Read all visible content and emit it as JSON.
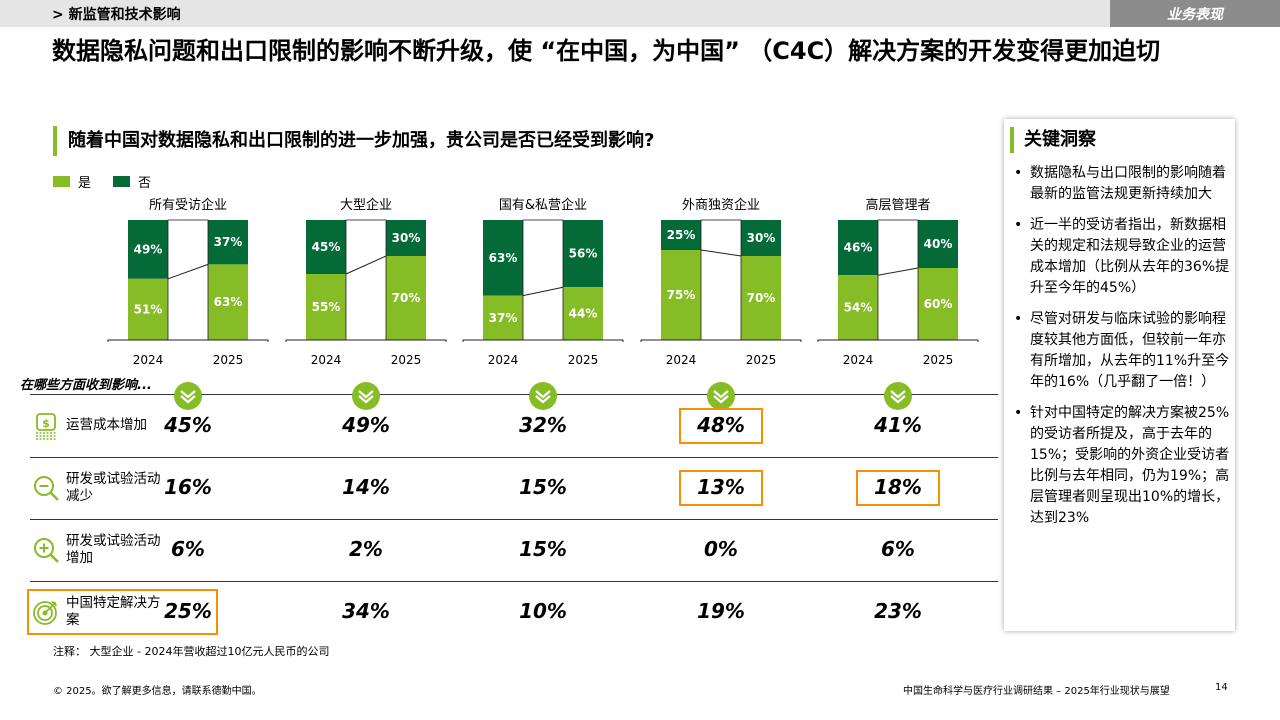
{
  "header": {
    "section": "> 新监管和技术影响",
    "tag": "业务表现"
  },
  "title": "数据隐私问题和出口限制的影响不断升级，使 “在中国，为中国” （C4C）解决方案的开发变得更加迫切",
  "question": "随着中国对数据隐私和出口限制的进一步加强，贵公司是否已经受到影响?",
  "colors": {
    "yes": "#86bc25",
    "no": "#046a38",
    "highlight": "#f39200"
  },
  "chart_data": {
    "type": "bar",
    "stacked": true,
    "unit": "%",
    "legend": [
      {
        "name": "是",
        "color": "#86bc25"
      },
      {
        "name": "否",
        "color": "#046a38"
      }
    ],
    "groups": [
      {
        "title": "所有受访企业",
        "categories": [
          "2024",
          "2025"
        ],
        "yes": [
          51,
          63
        ],
        "no": [
          49,
          37
        ]
      },
      {
        "title": "大型企业",
        "categories": [
          "2024",
          "2025"
        ],
        "yes": [
          55,
          70
        ],
        "no": [
          45,
          30
        ]
      },
      {
        "title": "国有&私营企业",
        "categories": [
          "2024",
          "2025"
        ],
        "yes": [
          37,
          44
        ],
        "no": [
          63,
          56
        ]
      },
      {
        "title": "外商独资企业",
        "categories": [
          "2024",
          "2025"
        ],
        "yes": [
          75,
          70
        ],
        "no": [
          25,
          30
        ]
      },
      {
        "title": "高层管理者",
        "categories": [
          "2024",
          "2025"
        ],
        "yes": [
          54,
          60
        ],
        "no": [
          46,
          40
        ]
      }
    ],
    "ylim": [
      0,
      100
    ]
  },
  "impact": {
    "title": "在哪些方面收到影响...",
    "rows": [
      {
        "icon": "money-stack-icon",
        "label": "运营成本增加",
        "values": [
          "45%",
          "49%",
          "32%",
          "48%",
          "41%"
        ],
        "highlight": [
          false,
          false,
          false,
          true,
          false
        ]
      },
      {
        "icon": "magnifier-minus-icon",
        "label": "研发或试验活动减少",
        "values": [
          "16%",
          "14%",
          "15%",
          "13%",
          "18%"
        ],
        "highlight": [
          false,
          false,
          false,
          true,
          true
        ]
      },
      {
        "icon": "magnifier-plus-icon",
        "label": "研发或试验活动增加",
        "values": [
          "6%",
          "2%",
          "15%",
          "0%",
          "6%"
        ],
        "highlight": [
          false,
          false,
          false,
          false,
          false
        ]
      },
      {
        "icon": "target-icon",
        "label": "中国特定解决方案",
        "values": [
          "25%",
          "34%",
          "10%",
          "19%",
          "23%"
        ],
        "highlight": [
          true,
          false,
          false,
          false,
          false
        ],
        "label_highlight": true
      }
    ]
  },
  "insights": {
    "title": "关键洞察",
    "items": [
      "数据隐私与出口限制的影响随着最新的监管法规更新持续加大",
      "近一半的受访者指出，新数据相关的规定和法规导致企业的运营成本增加（比例从去年的36%提升至今年的45%）",
      "尽管对研发与临床试验的影响程度较其他方面低，但较前一年亦有所增加，从去年的11%升至今年的16%（几乎翻了一倍！）",
      "针对中国特定的解决方案被25%的受访者所提及，高于去年的15%；受影响的外资企业受访者比例与去年相同，仍为19%；高层管理者则呈现出10%的增长，达到23%"
    ]
  },
  "note": "注释：  大型企业 - 2024年营收超过10亿元人民币的公司",
  "footer": {
    "copyright": "© 2025。欲了解更多信息，请联系德勤中国。",
    "report": "中国生命科学与医疗行业调研结果 – 2025年行业现状与展望",
    "page": "14"
  }
}
